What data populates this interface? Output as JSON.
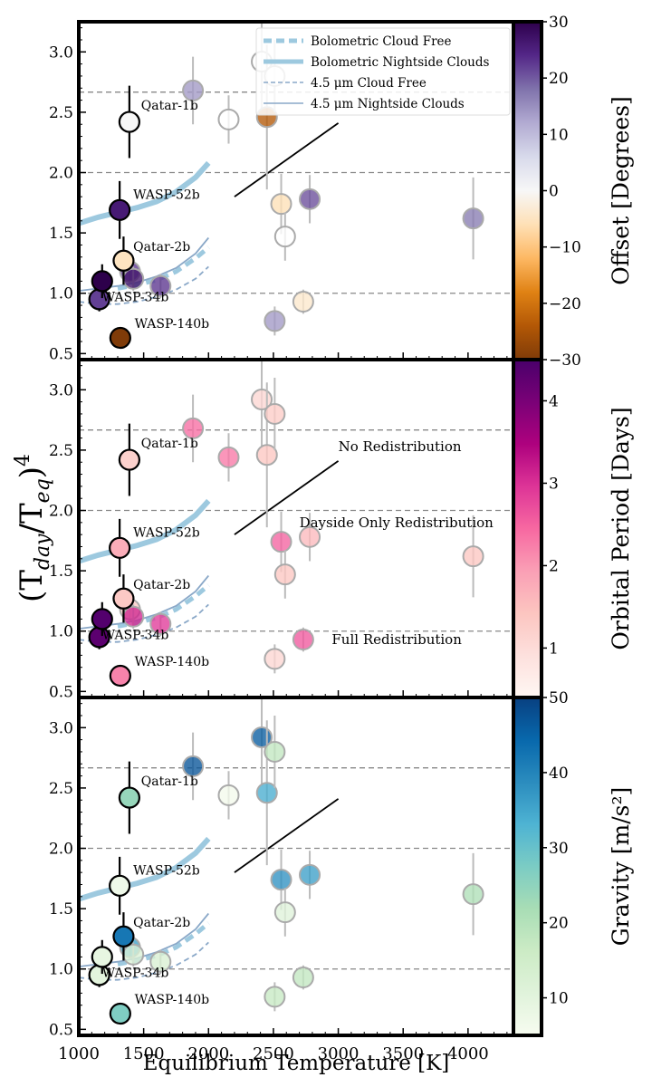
{
  "chart_data": {
    "type": "scatter",
    "xlabel": "Equilibrium Temperature [K]",
    "ylabel": "(T_day/T_eq)^4",
    "ylabel_parts": {
      "open": "(T",
      "sub1": "day",
      "slash": "/T",
      "sub2": "eq",
      "close": ")",
      "sup": "4"
    },
    "xlim": [
      1000,
      4350
    ],
    "ylim": [
      0.45,
      3.25
    ],
    "xticks": [
      1000,
      1500,
      2000,
      2500,
      3000,
      3500,
      4000
    ],
    "yticks": [
      0.5,
      1.0,
      1.5,
      2.0,
      2.5,
      3.0
    ],
    "hlines": [
      1.0,
      2.0,
      2.667
    ],
    "theory": {
      "bolometric_nightside": {
        "x": [
          1000,
          1150,
          1300,
          1450,
          1600,
          1750,
          1900,
          2000
        ],
        "y": [
          1.58,
          1.63,
          1.67,
          1.71,
          1.76,
          1.84,
          1.96,
          2.08
        ]
      },
      "bolometric_cloudfree": {
        "x": [
          1300,
          1450,
          1600,
          1750,
          1900,
          2000
        ],
        "y": [
          1.04,
          1.07,
          1.11,
          1.18,
          1.29,
          1.38
        ]
      },
      "ch2_nightside": {
        "x": [
          1000,
          1150,
          1300,
          1450,
          1600,
          1750,
          1900,
          2000
        ],
        "y": [
          1.02,
          1.04,
          1.06,
          1.09,
          1.14,
          1.21,
          1.33,
          1.46
        ]
      },
      "ch2_cloudfree": {
        "x": [
          1000,
          1150,
          1300,
          1450,
          1600,
          1750,
          1900,
          2000
        ],
        "y": [
          0.93,
          0.91,
          0.91,
          0.93,
          0.97,
          1.03,
          1.12,
          1.22
        ]
      },
      "slope_line": {
        "x": [
          2200,
          3000
        ],
        "y": [
          1.8,
          2.41
        ]
      }
    },
    "legend": {
      "placement": "top-right",
      "entries": [
        {
          "label": "Bolometric Cloud Free",
          "style": "thick-dashed"
        },
        {
          "label": "Bolometric Nightside Clouds",
          "style": "thick-solid"
        },
        {
          "label": "4.5 μm Cloud Free",
          "style": "thin-dashed"
        },
        {
          "label": "4.5 μm Nightside Clouds",
          "style": "thin-solid"
        }
      ]
    },
    "annotations": [
      {
        "panel": 2,
        "text": "No Redistribution",
        "x": 3000,
        "y": 2.53
      },
      {
        "panel": 2,
        "text": "Dayside Only Redistribution",
        "x": 2700,
        "y": 1.9
      },
      {
        "panel": 2,
        "text": "Full Redistribution",
        "x": 2950,
        "y": 0.93
      }
    ],
    "planets": [
      {
        "name": "Qatar-1b",
        "x": 1390,
        "y": 2.42,
        "yerr": 0.3,
        "label_x": 1480,
        "label_y": 2.56,
        "highlight": true,
        "offset": 0,
        "period": 1.2,
        "gravity": 24
      },
      {
        "name": "WASP-52b",
        "x": 1315,
        "y": 1.69,
        "yerr": 0.24,
        "label_x": 1420,
        "label_y": 1.82,
        "highlight": true,
        "offset": 26,
        "period": 1.75,
        "gravity": 7
      },
      {
        "name": "Qatar-2b",
        "x": 1345,
        "y": 1.27,
        "yerr": 0.2,
        "label_x": 1420,
        "label_y": 1.39,
        "highlight": true,
        "offset": -5,
        "period": 1.34,
        "gravity": 42
      },
      {
        "name": "WASP-34b",
        "x": 1158,
        "y": 0.95,
        "yerr": 0.1,
        "label_x": 1180,
        "label_y": 0.97,
        "highlight": true,
        "offset": 22,
        "period": 4.3,
        "gravity": 10
      },
      {
        "name": "WASP-140b",
        "x": 1320,
        "y": 0.63,
        "yerr": 0.05,
        "label_x": 1430,
        "label_y": 0.75,
        "highlight": true,
        "offset": -30,
        "period": 2.2,
        "gravity": 27
      },
      {
        "name": "",
        "x": 1180,
        "y": 1.1,
        "yerr": 0.14,
        "highlight": true,
        "offset": 30,
        "period": 4.4,
        "gravity": 9
      },
      {
        "name": "",
        "x": 1395,
        "y": 1.18,
        "yerr": 0.1,
        "highlight": false,
        "offset": 23,
        "period": 1.3,
        "gravity": 36
      },
      {
        "name": "",
        "x": 1420,
        "y": 1.12,
        "yerr": 0.1,
        "highlight": false,
        "offset": 27,
        "period": 3.1,
        "gravity": 12
      },
      {
        "name": "",
        "x": 1630,
        "y": 1.06,
        "yerr": 0.1,
        "highlight": false,
        "offset": 23,
        "period": 2.9,
        "gravity": 13
      },
      {
        "name": "",
        "x": 1880,
        "y": 2.68,
        "yerr": 0.28,
        "highlight": false,
        "offset": 14,
        "period": 2.4,
        "gravity": 47
      },
      {
        "name": "",
        "x": 2155,
        "y": 2.44,
        "yerr": 0.2,
        "highlight": false,
        "offset": null,
        "period": 2.3,
        "gravity": 6
      },
      {
        "name": "",
        "x": 2410,
        "y": 2.92,
        "yerr": 0.4,
        "highlight": false,
        "offset": null,
        "period": 1.1,
        "gravity": 46
      },
      {
        "name": "",
        "x": 2450,
        "y": 2.46,
        "yerr": 0.6,
        "highlight": false,
        "offset": -24,
        "period": 1.4,
        "gravity": 34
      },
      {
        "name": "",
        "x": 2510,
        "y": 2.8,
        "yerr": 0.3,
        "highlight": false,
        "offset": null,
        "period": 1.3,
        "gravity": 18
      },
      {
        "name": "",
        "x": 2560,
        "y": 1.74,
        "yerr": 0.25,
        "highlight": false,
        "offset": -6,
        "period": 2.5,
        "gravity": 38
      },
      {
        "name": "",
        "x": 2590,
        "y": 1.47,
        "yerr": 0.2,
        "highlight": false,
        "offset": null,
        "period": 1.4,
        "gravity": 11
      },
      {
        "name": "",
        "x": 2780,
        "y": 1.78,
        "yerr": 0.2,
        "highlight": false,
        "offset": 21,
        "period": 1.6,
        "gravity": 36
      },
      {
        "name": "",
        "x": 2510,
        "y": 0.77,
        "yerr": 0.12,
        "highlight": false,
        "offset": 14,
        "period": 1.1,
        "gravity": 17
      },
      {
        "name": "",
        "x": 2730,
        "y": 0.93,
        "yerr": 0.1,
        "highlight": false,
        "offset": -4,
        "period": 2.6,
        "gravity": 18
      },
      {
        "name": "",
        "x": 4040,
        "y": 1.62,
        "yerr": 0.34,
        "highlight": false,
        "offset": 17,
        "period": 1.4,
        "gravity": 21
      }
    ],
    "panels": [
      {
        "colorbar": "offset",
        "colorbar_label": "Offset [Degrees]",
        "cmap": "PuOr",
        "clim": [
          -30,
          30
        ],
        "cticks": [
          -30,
          -20,
          -10,
          0,
          10,
          20,
          30
        ],
        "show_legend": true,
        "show_annotations": false,
        "show_xticklabels": false
      },
      {
        "colorbar": "period",
        "colorbar_label": "Orbital Period [Days]",
        "cmap": "RdPu",
        "clim": [
          0.4,
          4.5
        ],
        "cticks": [
          1,
          2,
          3,
          4
        ],
        "show_legend": false,
        "show_annotations": true,
        "show_xticklabels": false
      },
      {
        "colorbar": "gravity",
        "colorbar_label": "Gravity [m/s²]",
        "cmap": "GnBu",
        "clim": [
          5,
          50
        ],
        "cticks": [
          10,
          20,
          30,
          40,
          50
        ],
        "show_legend": false,
        "show_annotations": false,
        "show_xticklabels": true
      }
    ],
    "colors": {
      "PuOr": [
        "#7f3b08",
        "#b35806",
        "#e08214",
        "#fdb863",
        "#fee0b6",
        "#f7f7f7",
        "#d8daeb",
        "#b2abd2",
        "#8073ac",
        "#542788",
        "#2d004b"
      ],
      "RdPu": [
        "#fff7f3",
        "#fde0dd",
        "#fcc5c0",
        "#fa9fb5",
        "#f768a1",
        "#dd3497",
        "#ae017e",
        "#7a0177",
        "#49006a"
      ],
      "GnBu": [
        "#f7fcf0",
        "#e0f3db",
        "#ccebc5",
        "#a8ddb5",
        "#7bccc4",
        "#4eb3d3",
        "#2b8cbe",
        "#0868ac",
        "#084081"
      ],
      "theory": "#9dc9df",
      "theory_thin": "#8aa8c8",
      "grid": "#888888",
      "missing_fill": "#ffffff"
    }
  }
}
